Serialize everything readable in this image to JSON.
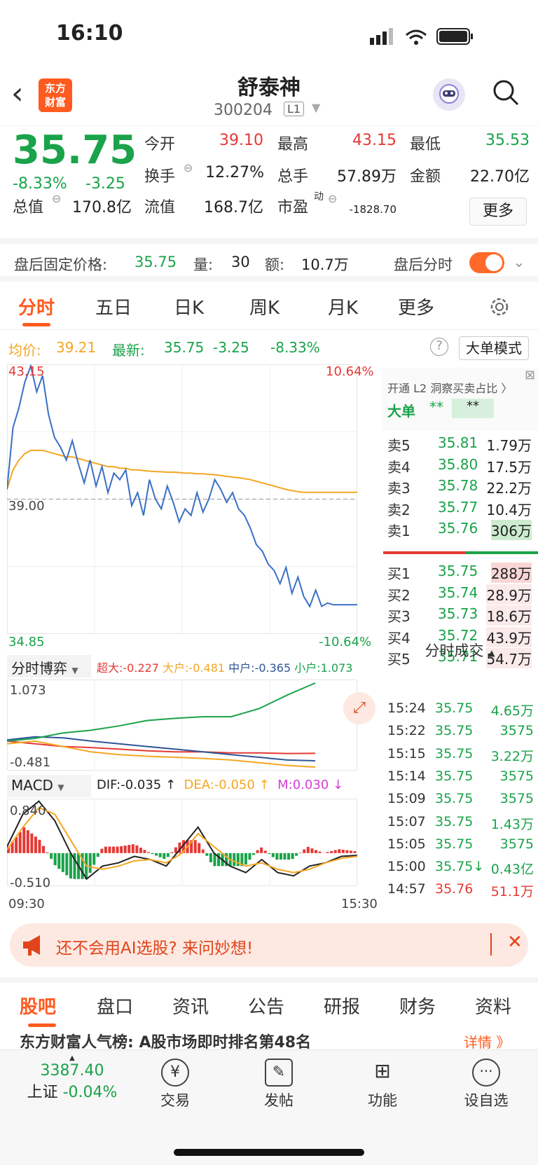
{
  "status": {
    "time": "16:10"
  },
  "header": {
    "logo": "东方\n财富",
    "title": "舒泰神",
    "code": "300204",
    "level": "L1"
  },
  "quote": {
    "price": "35.75",
    "pct": "-8.33%",
    "chg": "-3.25",
    "open_label": "今开",
    "open": "39.10",
    "high_label": "最高",
    "high": "43.15",
    "low_label": "最低",
    "low": "35.53",
    "turnover_label": "换手",
    "turnover": "12.27%",
    "vol_label": "总手",
    "vol": "57.89万",
    "amount_label": "金额",
    "amount": "22.70亿",
    "mcap_label": "总值",
    "mcap": "170.8亿",
    "float_label": "流值",
    "float": "168.7亿",
    "pe_label": "市盈",
    "pe_sup": "动",
    "pe": "-1828.70",
    "more": "更多"
  },
  "afterhours": {
    "label": "盘后固定价格:",
    "price": "35.75",
    "vol_label": "量:",
    "vol": "30",
    "amt_label": "额:",
    "amt": "10.7万",
    "toggle_label": "盘后分时"
  },
  "tabs": [
    "分时",
    "五日",
    "日K",
    "周K",
    "月K",
    "更多"
  ],
  "avg": {
    "avg_label": "均价:",
    "avg": "39.21",
    "latest_label": "最新:",
    "latest": "35.75",
    "chg": "-3.25",
    "pct": "-8.33%",
    "mode_btn": "大单模式"
  },
  "chart_data": [
    {
      "type": "line",
      "title": "",
      "y_top": "43.15",
      "y_mid": "39.00",
      "y_bottom": "34.85",
      "pct_top": "10.64%",
      "pct_bottom": "-10.64%",
      "x_start": "09:30",
      "x_end": "15:30",
      "ylim": [
        34.85,
        43.15
      ],
      "series": [
        {
          "values": [
            39.3,
            41.2,
            41.8,
            42.6,
            43.1,
            42.3,
            42.8,
            41.6,
            40.9,
            40.6,
            40.2,
            40.8,
            40.1,
            39.5,
            40.2,
            39.4,
            40.0,
            39.2,
            39.8,
            39.6,
            39.9,
            38.8,
            39.2,
            38.5,
            39.6,
            39.0,
            38.7,
            39.4,
            38.9,
            38.3,
            38.7,
            38.5,
            39.2,
            38.6,
            39.0,
            39.6,
            39.3,
            38.9,
            39.2,
            38.7,
            38.5,
            38.1,
            37.6,
            37.4,
            37.0,
            36.8,
            36.4,
            36.9,
            36.1,
            36.6,
            36.0,
            35.7,
            36.2,
            35.7,
            35.8,
            35.75,
            35.75,
            35.75,
            35.75,
            35.75
          ]
        },
        {
          "values": [
            39.3,
            39.9,
            40.2,
            40.4,
            40.5,
            40.5,
            40.5,
            40.45,
            40.4,
            40.35,
            40.3,
            40.3,
            40.25,
            40.2,
            40.15,
            40.1,
            40.05,
            40.0,
            40.0,
            39.95,
            39.95,
            39.9,
            39.9,
            39.88,
            39.86,
            39.85,
            39.84,
            39.83,
            39.83,
            39.82,
            39.8,
            39.8,
            39.78,
            39.78,
            39.76,
            39.75,
            39.73,
            39.7,
            39.68,
            39.66,
            39.63,
            39.6,
            39.55,
            39.5,
            39.45,
            39.4,
            39.35,
            39.3,
            39.26,
            39.23,
            39.21,
            39.21,
            39.21,
            39.21,
            39.21,
            39.21,
            39.21,
            39.21,
            39.21,
            39.21
          ]
        }
      ]
    },
    {
      "type": "line",
      "title": "分时博弈",
      "ylim": [
        -0.481,
        1.073
      ],
      "y_top": "1.073",
      "y_bottom": "-0.481",
      "series": [
        {
          "name": "超大",
          "value": "-0.227",
          "color": "#e53935",
          "values": [
            0,
            -0.05,
            -0.1,
            -0.12,
            -0.15,
            -0.18,
            -0.2,
            -0.2,
            -0.22,
            -0.22,
            -0.23,
            -0.227
          ]
        },
        {
          "name": "大户",
          "value": "-0.481",
          "color": "#f5a623",
          "values": [
            -0.05,
            0.0,
            -0.1,
            -0.2,
            -0.25,
            -0.28,
            -0.3,
            -0.32,
            -0.35,
            -0.4,
            -0.45,
            -0.481
          ]
        },
        {
          "name": "中户",
          "value": "-0.365",
          "color": "#2f5597",
          "values": [
            0.02,
            0.08,
            0.06,
            0.0,
            -0.05,
            -0.1,
            -0.15,
            -0.2,
            -0.25,
            -0.3,
            -0.35,
            -0.365
          ]
        },
        {
          "name": "小户",
          "value": "1.073",
          "color": "#1aa34a",
          "values": [
            0.0,
            0.05,
            0.15,
            0.2,
            0.28,
            0.38,
            0.42,
            0.45,
            0.45,
            0.6,
            0.85,
            1.073
          ]
        }
      ]
    },
    {
      "type": "line",
      "title": "MACD",
      "y_top": "0.840",
      "y_bottom": "-0.510",
      "ylim": [
        -0.51,
        0.84
      ],
      "dif_label": "DIF:",
      "dif": "-0.035",
      "dif_arrow": "↑",
      "dea_label": "DEA:",
      "dea": "-0.050",
      "dea_arrow": "↑",
      "m_label": "M:",
      "m": "0.030",
      "m_arrow": "↓",
      "series": [
        {
          "name": "DIF",
          "values": [
            0.1,
            0.6,
            0.8,
            0.5,
            0.0,
            -0.4,
            -0.2,
            -0.15,
            -0.05,
            -0.1,
            -0.2,
            0.1,
            0.4,
            0.0,
            -0.2,
            -0.3,
            -0.1,
            -0.3,
            -0.35,
            -0.2,
            -0.15,
            -0.05,
            -0.035
          ]
        },
        {
          "name": "DEA",
          "values": [
            0.05,
            0.4,
            0.7,
            0.6,
            0.2,
            -0.2,
            -0.25,
            -0.2,
            -0.12,
            -0.1,
            -0.15,
            0.0,
            0.3,
            0.1,
            -0.1,
            -0.2,
            -0.15,
            -0.25,
            -0.3,
            -0.25,
            -0.15,
            -0.08,
            -0.05
          ]
        }
      ]
    }
  ],
  "book": {
    "promo": "开通 L2 洞察买卖占比 〉",
    "big_label": "大单",
    "big_a": "**",
    "big_b": "**",
    "asks": [
      {
        "n": "卖5",
        "p": "35.81",
        "v": "1.79万"
      },
      {
        "n": "卖4",
        "p": "35.80",
        "v": "17.5万"
      },
      {
        "n": "卖3",
        "p": "35.78",
        "v": "22.2万"
      },
      {
        "n": "卖2",
        "p": "35.77",
        "v": "10.4万"
      },
      {
        "n": "卖1",
        "p": "35.76",
        "v": "306万"
      }
    ],
    "bids": [
      {
        "n": "买1",
        "p": "35.75",
        "v": "288万"
      },
      {
        "n": "买2",
        "p": "35.74",
        "v": "28.9万"
      },
      {
        "n": "买3",
        "p": "35.73",
        "v": "18.6万"
      },
      {
        "n": "买4",
        "p": "35.72",
        "v": "43.9万"
      },
      {
        "n": "买5",
        "p": "35.71",
        "v": "54.7万"
      }
    ],
    "trades_title": "分时成交",
    "trades": [
      {
        "t": "15:24",
        "p": "35.75",
        "v": "4.65万"
      },
      {
        "t": "15:22",
        "p": "35.75",
        "v": "3575"
      },
      {
        "t": "15:15",
        "p": "35.75",
        "v": "3.22万"
      },
      {
        "t": "15:14",
        "p": "35.75",
        "v": "3575"
      },
      {
        "t": "15:09",
        "p": "35.75",
        "v": "3575"
      },
      {
        "t": "15:07",
        "p": "35.75",
        "v": "1.43万"
      },
      {
        "t": "15:05",
        "p": "35.75",
        "v": "3575"
      },
      {
        "t": "15:00",
        "p": "35.75↓",
        "v": "0.43亿"
      },
      {
        "t": "14:57",
        "p": "35.76",
        "v": "51.1万"
      }
    ]
  },
  "banner": {
    "text": "还不会用AI选股? 来问妙想!"
  },
  "subtabs": [
    "股吧",
    "盘口",
    "资讯",
    "公告",
    "研报",
    "财务",
    "资料"
  ],
  "ticker_text": "东方财富人气榜: A股市场即时排名第48名",
  "ticker_more": "详情 》",
  "bottomnav": {
    "index_value": "3387.40",
    "index_name": "上证",
    "index_pct": "-0.04%",
    "items": [
      "交易",
      "发帖",
      "功能",
      "设自选"
    ]
  },
  "colors": {
    "up": "#e53935",
    "down": "#1aa34a",
    "accent": "#ff5a1f",
    "avg": "#f5a623",
    "price": "#3a6fc4"
  }
}
